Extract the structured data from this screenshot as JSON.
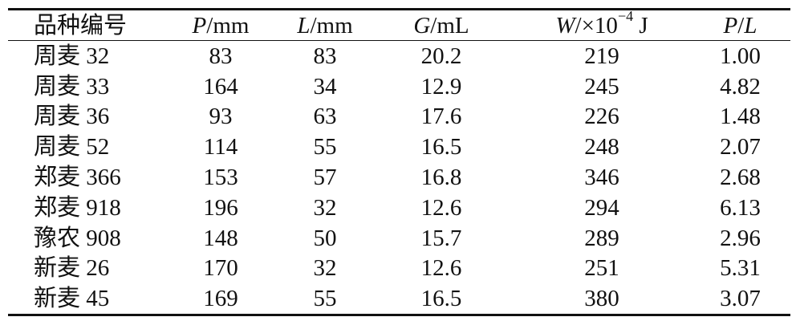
{
  "table": {
    "header": [
      [
        {
          "text": "品种编号"
        }
      ],
      [
        {
          "text": "P",
          "italic": true
        },
        {
          "text": "/mm"
        }
      ],
      [
        {
          "text": "L",
          "italic": true
        },
        {
          "text": "/mm"
        }
      ],
      [
        {
          "text": "G",
          "italic": true
        },
        {
          "text": "/mL"
        }
      ],
      [
        {
          "text": "W",
          "italic": true
        },
        {
          "text": "/×10"
        },
        {
          "text": "−4",
          "sup": true
        },
        {
          "text": " J"
        }
      ],
      [
        {
          "text": "P",
          "italic": true
        },
        {
          "text": "/"
        },
        {
          "text": "L",
          "italic": true
        }
      ]
    ],
    "rows": [
      [
        "周麦 32",
        "83",
        "83",
        "20.2",
        "219",
        "1.00"
      ],
      [
        "周麦 33",
        "164",
        "34",
        "12.9",
        "245",
        "4.82"
      ],
      [
        "周麦 36",
        "93",
        "63",
        "17.6",
        "226",
        "1.48"
      ],
      [
        "周麦 52",
        "114",
        "55",
        "16.5",
        "248",
        "2.07"
      ],
      [
        "郑麦 366",
        "153",
        "57",
        "16.8",
        "346",
        "2.68"
      ],
      [
        "郑麦 918",
        "196",
        "32",
        "12.6",
        "294",
        "6.13"
      ],
      [
        "豫农 908",
        "148",
        "50",
        "15.7",
        "289",
        "2.96"
      ],
      [
        "新麦 26",
        "170",
        "32",
        "12.6",
        "251",
        "5.31"
      ],
      [
        "新麦 45",
        "169",
        "55",
        "16.5",
        "380",
        "3.07"
      ]
    ]
  }
}
